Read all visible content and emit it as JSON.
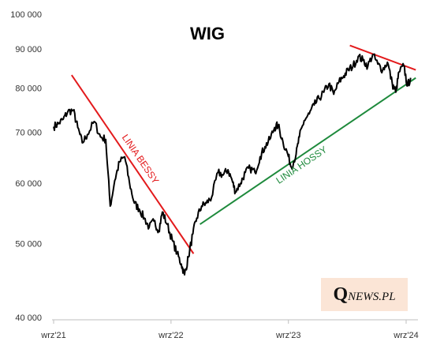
{
  "chart_data": {
    "type": "line",
    "title": "WIG",
    "y_scale": "log",
    "ylim": [
      40000,
      100000
    ],
    "y_ticks": [
      40000,
      50000,
      60000,
      70000,
      80000,
      90000,
      100000
    ],
    "y_tick_labels": [
      "40 000",
      "50 000",
      "60 000",
      "70 000",
      "80 000",
      "90 000",
      "100 000"
    ],
    "x_ticks": [
      "2021-09",
      "2022-09",
      "2023-09",
      "2024-09"
    ],
    "x_tick_labels": [
      "wrz'21",
      "wrz'22",
      "wrz'23",
      "wrz'24"
    ],
    "grid": false,
    "series": [
      {
        "color": "#000000",
        "points": [
          [
            "2021-09-01",
            71200
          ],
          [
            "2021-09-15",
            71800
          ],
          [
            "2021-10-01",
            72800
          ],
          [
            "2021-10-15",
            74500
          ],
          [
            "2021-11-01",
            74800
          ],
          [
            "2021-11-15",
            71000
          ],
          [
            "2021-11-29",
            67800
          ],
          [
            "2021-12-15",
            69500
          ],
          [
            "2022-01-05",
            72300
          ],
          [
            "2022-01-25",
            69000
          ],
          [
            "2022-02-10",
            68500
          ],
          [
            "2022-02-24",
            56000
          ],
          [
            "2022-03-10",
            60500
          ],
          [
            "2022-03-25",
            64000
          ],
          [
            "2022-04-10",
            65000
          ],
          [
            "2022-04-25",
            60000
          ],
          [
            "2022-05-10",
            56500
          ],
          [
            "2022-05-25",
            55500
          ],
          [
            "2022-06-10",
            54000
          ],
          [
            "2022-06-25",
            52500
          ],
          [
            "2022-07-10",
            53500
          ],
          [
            "2022-07-25",
            52000
          ],
          [
            "2022-08-05",
            55000
          ],
          [
            "2022-08-20",
            53000
          ],
          [
            "2022-09-05",
            50500
          ],
          [
            "2022-09-20",
            48500
          ],
          [
            "2022-10-03",
            47000
          ],
          [
            "2022-10-13",
            45500
          ],
          [
            "2022-10-25",
            48000
          ],
          [
            "2022-11-08",
            51500
          ],
          [
            "2022-11-20",
            54000
          ],
          [
            "2022-12-05",
            56000
          ],
          [
            "2022-12-20",
            56500
          ],
          [
            "2023-01-05",
            57500
          ],
          [
            "2023-01-25",
            62000
          ],
          [
            "2023-02-10",
            61500
          ],
          [
            "2023-02-25",
            62500
          ],
          [
            "2023-03-10",
            60500
          ],
          [
            "2023-03-20",
            58500
          ],
          [
            "2023-04-05",
            60000
          ],
          [
            "2023-04-20",
            62000
          ],
          [
            "2023-05-05",
            62800
          ],
          [
            "2023-05-20",
            62000
          ],
          [
            "2023-06-05",
            65000
          ],
          [
            "2023-06-20",
            67000
          ],
          [
            "2023-07-05",
            68500
          ],
          [
            "2023-07-20",
            71000
          ],
          [
            "2023-07-31",
            71500
          ],
          [
            "2023-08-15",
            68000
          ],
          [
            "2023-08-30",
            65500
          ],
          [
            "2023-09-10",
            63000
          ],
          [
            "2023-09-25",
            65500
          ],
          [
            "2023-10-05",
            69000
          ],
          [
            "2023-10-20",
            72500
          ],
          [
            "2023-11-05",
            74000
          ],
          [
            "2023-11-20",
            76000
          ],
          [
            "2023-12-05",
            77500
          ],
          [
            "2023-12-20",
            79000
          ],
          [
            "2024-01-05",
            81000
          ],
          [
            "2024-01-20",
            78500
          ],
          [
            "2024-02-05",
            81500
          ],
          [
            "2024-02-20",
            83000
          ],
          [
            "2024-03-05",
            84500
          ],
          [
            "2024-03-20",
            85500
          ],
          [
            "2024-04-05",
            88000
          ],
          [
            "2024-04-20",
            87000
          ],
          [
            "2024-05-05",
            85500
          ],
          [
            "2024-05-20",
            88500
          ],
          [
            "2024-06-05",
            86000
          ],
          [
            "2024-06-20",
            84500
          ],
          [
            "2024-07-05",
            86500
          ],
          [
            "2024-07-20",
            81000
          ],
          [
            "2024-07-31",
            79000
          ],
          [
            "2024-08-10",
            84000
          ],
          [
            "2024-08-25",
            85500
          ],
          [
            "2024-09-05",
            80500
          ],
          [
            "2024-09-15",
            82500
          ]
        ]
      }
    ],
    "trendlines": [
      {
        "label": "LINIA BESSY",
        "color": "#e31a1c",
        "from": [
          "2021-10-27",
          83200
        ],
        "to": [
          "2022-11-10",
          48500
        ]
      },
      {
        "label": "LINIA HOSSY",
        "color": "#1e8a3c",
        "from": [
          "2022-11-30",
          53000
        ],
        "to": [
          "2024-10-01",
          82500
        ]
      },
      {
        "label": "",
        "color": "#e31a1c",
        "from": [
          "2024-03-10",
          91000
        ],
        "to": [
          "2024-10-01",
          84500
        ]
      }
    ],
    "logo": {
      "q": "Q",
      "rest": "NEWS.PL"
    }
  }
}
